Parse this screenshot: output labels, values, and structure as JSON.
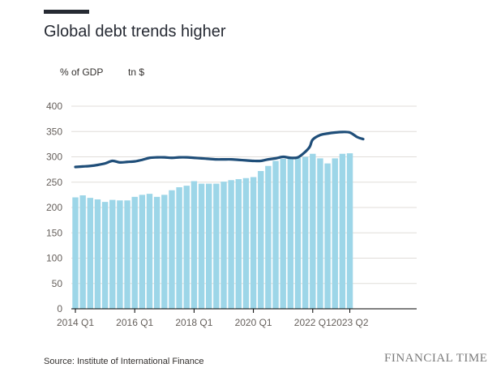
{
  "chart_data": {
    "type": "bar",
    "title": "Global debt trends higher",
    "legend": [
      "% of GDP",
      "tn $"
    ],
    "ylim": [
      0,
      400
    ],
    "yticks": [
      0,
      50,
      100,
      150,
      200,
      250,
      300,
      350,
      400
    ],
    "xtick_labels": [
      "2014 Q1",
      "2016 Q1",
      "2018 Q1",
      "2020 Q1",
      "2022 Q1",
      "2023 Q2"
    ],
    "categories": [
      "2014 Q1",
      "2014 Q2",
      "2014 Q3",
      "2014 Q4",
      "2015 Q1",
      "2015 Q2",
      "2015 Q3",
      "2015 Q4",
      "2016 Q1",
      "2016 Q2",
      "2016 Q3",
      "2016 Q4",
      "2017 Q1",
      "2017 Q2",
      "2017 Q3",
      "2017 Q4",
      "2018 Q1",
      "2018 Q2",
      "2018 Q3",
      "2018 Q4",
      "2019 Q1",
      "2019 Q2",
      "2019 Q3",
      "2019 Q4",
      "2020 Q1",
      "2020 Q2",
      "2020 Q3",
      "2020 Q4",
      "2021 Q1",
      "2021 Q2",
      "2021 Q3",
      "2021 Q4",
      "2022 Q1",
      "2022 Q2",
      "2022 Q3",
      "2022 Q4",
      "2023 Q1",
      "2023 Q2"
    ],
    "series": [
      {
        "name": "tn $",
        "type": "bar",
        "color": "#9dd6e8",
        "values": [
          220,
          224,
          219,
          216,
          211,
          215,
          214,
          214,
          221,
          225,
          227,
          221,
          225,
          234,
          240,
          243,
          252,
          247,
          247,
          247,
          251,
          254,
          256,
          258,
          260,
          272,
          282,
          292,
          296,
          297,
          298,
          300,
          306,
          297,
          287,
          297,
          306,
          307
        ]
      },
      {
        "name": "% of GDP",
        "type": "line",
        "color": "#1f4e79",
        "x": [
          0,
          1,
          2,
          3,
          4,
          5,
          6,
          7,
          8,
          9,
          10,
          11,
          12,
          13,
          14,
          15,
          16,
          17,
          18,
          19,
          20,
          21,
          22,
          23,
          24,
          25,
          26,
          27,
          28,
          29,
          30,
          31,
          31.6,
          32,
          33,
          34,
          35,
          36,
          37,
          38,
          38.8
        ],
        "values": [
          280,
          281,
          282,
          284,
          287,
          292,
          289,
          290,
          291,
          294,
          298,
          299,
          299,
          298,
          299,
          299,
          298,
          297,
          296,
          295,
          295,
          295,
          294,
          293,
          292,
          292,
          295,
          297,
          300,
          298,
          299,
          310,
          320,
          334,
          343,
          346,
          348,
          349,
          348,
          339,
          335
        ]
      }
    ]
  },
  "source": "Source: Institute of International Finance",
  "brand": "FINANCIAL TIMES"
}
